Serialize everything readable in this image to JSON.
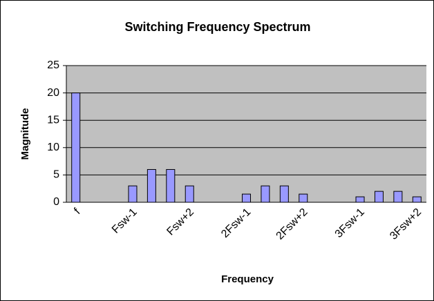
{
  "chart_data": {
    "type": "bar",
    "title": "Switching Frequency Spectrum",
    "x_label": "Frequency",
    "y_label": "Magnitude",
    "categories": [
      "f",
      null,
      null,
      "Fsw-1",
      null,
      null,
      "Fsw+2",
      null,
      null,
      "2Fsw-1",
      null,
      null,
      "2Fsw+2",
      null,
      null,
      "3Fsw-1",
      null,
      null,
      "3Fsw+2"
    ],
    "values": [
      20,
      0,
      0,
      3,
      6,
      6,
      3,
      0,
      0,
      1.5,
      3,
      3,
      1.5,
      0,
      0,
      1,
      2,
      2,
      1
    ],
    "color": "#9999ff",
    "ylim": [
      0,
      25
    ],
    "yticks": [
      0,
      5,
      10,
      15,
      20,
      25
    ],
    "grid": true
  }
}
